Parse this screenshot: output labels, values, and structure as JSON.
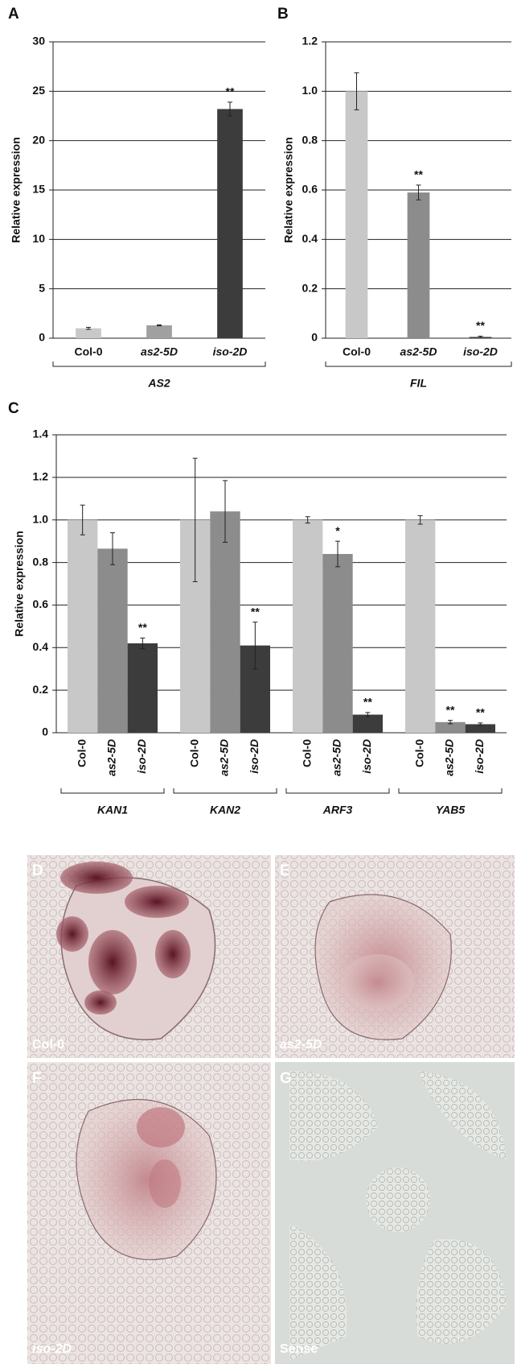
{
  "chart_data": [
    {
      "type": "bar",
      "panel": "A",
      "y_label": "Relative expression",
      "categories": [
        "Col-0",
        "as2-5D",
        "iso-2D"
      ],
      "values": [
        1,
        1.3,
        23.2
      ],
      "errors": [
        0.1,
        0.05,
        0.7
      ],
      "colors": [
        "#c8c8c8",
        "#a0a0a0",
        "#3c3c3c"
      ],
      "significance": [
        null,
        null,
        "**"
      ],
      "group_label": "AS2",
      "ylim": [
        0,
        30
      ],
      "yticks": [
        0,
        5,
        10,
        15,
        20,
        25,
        30
      ],
      "grid": true
    },
    {
      "type": "bar",
      "panel": "B",
      "y_label": "Relative expression",
      "categories": [
        "Col-0",
        "as2-5D",
        "iso-2D"
      ],
      "values": [
        1.0,
        0.59,
        0.005
      ],
      "errors": [
        0.075,
        0.03,
        0.003
      ],
      "colors": [
        "#c8c8c8",
        "#8c8c8c",
        "#3c3c3c"
      ],
      "significance": [
        null,
        "**",
        "**"
      ],
      "group_label": "FIL",
      "ylim": [
        0,
        1.2
      ],
      "yticks": [
        0,
        0.2,
        0.4,
        0.6,
        0.8,
        {
          "value": 1,
          "label": "1.0"
        },
        1.2
      ],
      "grid": true
    },
    {
      "type": "grouped-bar",
      "panel": "C",
      "y_label": "Relative expression",
      "groups": [
        "KAN1",
        "KAN2",
        "ARF3",
        "YAB5"
      ],
      "series": [
        {
          "name": "Col-0",
          "color": "#c8c8c8",
          "values": [
            1.0,
            1.0,
            1.0,
            1.0
          ],
          "errors": [
            0.07,
            0.29,
            0.015,
            0.02
          ],
          "significance": [
            null,
            null,
            null,
            null
          ]
        },
        {
          "name": "as2-5D",
          "color": "#8c8c8c",
          "values": [
            0.865,
            1.04,
            0.84,
            0.05
          ],
          "errors": [
            0.075,
            0.145,
            0.06,
            0.008
          ],
          "significance": [
            null,
            null,
            "*",
            "**"
          ]
        },
        {
          "name": "iso-2D",
          "color": "#3c3c3c",
          "values": [
            0.42,
            0.41,
            0.085,
            0.04
          ],
          "errors": [
            0.025,
            0.11,
            0.01,
            0.006
          ],
          "significance": [
            "**",
            "**",
            "**",
            "**"
          ]
        }
      ],
      "ylim": [
        0,
        1.4
      ],
      "yticks": [
        0,
        0.2,
        0.4,
        0.6,
        0.8,
        {
          "value": 1,
          "label": "1.0"
        },
        1.2,
        1.4
      ],
      "grid": true
    }
  ],
  "micrographs": [
    {
      "panel": "D",
      "label": "Col-0"
    },
    {
      "panel": "E",
      "label": "as2-5D"
    },
    {
      "panel": "F",
      "label": "iso-2D"
    },
    {
      "panel": "G",
      "label": "Sense"
    }
  ]
}
